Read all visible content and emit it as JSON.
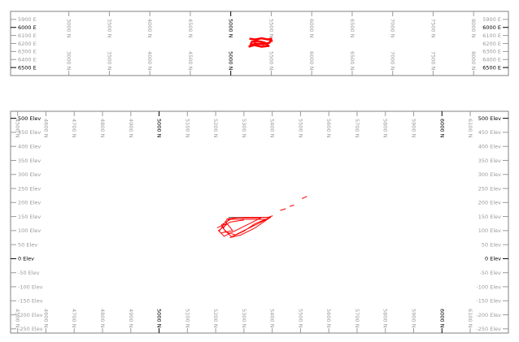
{
  "colors": {
    "frame": "#808080",
    "tick": "#9a9a9a",
    "major": "#000000",
    "trajectory": "#ff0000",
    "reference_line": "#808080"
  },
  "chart_data": [
    {
      "type": "line",
      "view": "plan",
      "x_ticks": [
        {
          "value": 3000,
          "label": "3000 N"
        },
        {
          "value": 3500,
          "label": "3500 N"
        },
        {
          "value": 4000,
          "label": "4000 N"
        },
        {
          "value": 4500,
          "label": "4500 N"
        },
        {
          "value": 5000,
          "label": "5000 N",
          "major": true
        },
        {
          "value": 5500,
          "label": "5500 N"
        },
        {
          "value": 6000,
          "label": "6000 N"
        },
        {
          "value": 6500,
          "label": "6500 N"
        },
        {
          "value": 7000,
          "label": "7000 N"
        },
        {
          "value": 7500,
          "label": "7500 N"
        },
        {
          "value": 8000,
          "label": "8000 N"
        }
      ],
      "y_ticks": [
        {
          "value": 5900,
          "label": "5900 E"
        },
        {
          "value": 6000,
          "label": "6000 E",
          "major": true
        },
        {
          "value": 6100,
          "label": "6100 E"
        },
        {
          "value": 6200,
          "label": "6200 E"
        },
        {
          "value": 6300,
          "label": "6300 E"
        },
        {
          "value": 6400,
          "label": "6400 E"
        },
        {
          "value": 6500,
          "label": "6500 E",
          "major": true
        }
      ],
      "xlim": [
        2280,
        8430
      ],
      "ylim": [
        5800,
        6600
      ],
      "y_inverted": true,
      "series": [
        {
          "points": [
            [
              5230,
              6140
            ],
            [
              5300,
              6150
            ],
            [
              5380,
              6135
            ],
            [
              5460,
              6150
            ],
            [
              5500,
              6140
            ],
            [
              5480,
              6190
            ],
            [
              5400,
              6210
            ],
            [
              5300,
              6200
            ],
            [
              5240,
              6230
            ],
            [
              5260,
              6180
            ],
            [
              5330,
              6170
            ],
            [
              5420,
              6190
            ],
            [
              5470,
              6230
            ],
            [
              5380,
              6240
            ],
            [
              5290,
              6220
            ],
            [
              5220,
              6240
            ]
          ]
        },
        {
          "points": [
            [
              5500,
              6150
            ],
            [
              5510,
              6180
            ]
          ]
        }
      ]
    },
    {
      "type": "line",
      "view": "section",
      "x_ticks": [
        {
          "value": 4500,
          "label": "4500 N"
        },
        {
          "value": 4600,
          "label": "4600 N"
        },
        {
          "value": 4700,
          "label": "4700 N"
        },
        {
          "value": 4800,
          "label": "4800 N"
        },
        {
          "value": 4900,
          "label": "4900 N"
        },
        {
          "value": 5000,
          "label": "5000 N",
          "major": true
        },
        {
          "value": 5100,
          "label": "5100 N"
        },
        {
          "value": 5200,
          "label": "5200 N"
        },
        {
          "value": 5300,
          "label": "5300 N"
        },
        {
          "value": 5400,
          "label": "5400 N"
        },
        {
          "value": 5500,
          "label": "5500 N"
        },
        {
          "value": 5600,
          "label": "5600 N"
        },
        {
          "value": 5700,
          "label": "5700 N"
        },
        {
          "value": 5800,
          "label": "5800 N"
        },
        {
          "value": 5900,
          "label": "5900 N"
        },
        {
          "value": 6000,
          "label": "6000 N",
          "major": true
        },
        {
          "value": 6100,
          "label": "6100 N"
        }
      ],
      "y_ticks": [
        {
          "value": 500,
          "label": "500 Elev",
          "major": true
        },
        {
          "value": 450,
          "label": "450 Elev"
        },
        {
          "value": 400,
          "label": "400 Elev"
        },
        {
          "value": 350,
          "label": "350 Elev"
        },
        {
          "value": 300,
          "label": "300 Elev"
        },
        {
          "value": 250,
          "label": "250 Elev"
        },
        {
          "value": 200,
          "label": "200 Elev"
        },
        {
          "value": 150,
          "label": "150 Elev"
        },
        {
          "value": 100,
          "label": "100 Elev"
        },
        {
          "value": 50,
          "label": "50 Elev"
        },
        {
          "value": 0,
          "label": "0 Elev",
          "major": true
        },
        {
          "value": -50,
          "label": "-50 Elev"
        },
        {
          "value": -100,
          "label": "-100 Elev"
        },
        {
          "value": -150,
          "label": "-150 Elev"
        },
        {
          "value": -200,
          "label": "-200 Elev"
        },
        {
          "value": -250,
          "label": "-250 Elev"
        }
      ],
      "xlim": [
        4475,
        6235
      ],
      "ylim": [
        -265,
        525
      ],
      "reference_line": [
        [
          5245,
          147
        ],
        [
          5395,
          147
        ]
      ],
      "series": [
        {
          "points": [
            [
              5213,
              98
            ],
            [
              5241,
              142
            ],
            [
              5300,
              147
            ],
            [
              5394,
              147
            ],
            [
              5340,
              125
            ],
            [
              5300,
              98
            ],
            [
              5256,
              78
            ],
            [
              5227,
              107
            ],
            [
              5245,
              140
            ],
            [
              5330,
              140
            ],
            [
              5380,
              140
            ],
            [
              5320,
              110
            ],
            [
              5270,
              85
            ],
            [
              5236,
              95
            ],
            [
              5220,
              120
            ],
            [
              5260,
              145
            ],
            [
              5360,
              145
            ],
            [
              5300,
              115
            ],
            [
              5250,
              90
            ],
            [
              5230,
              80
            ],
            [
              5210,
              100
            ],
            [
              5250,
              130
            ],
            [
              5300,
              138
            ]
          ]
        },
        {
          "points": [
            [
              5250,
              75
            ],
            [
              5290,
              85
            ],
            [
              5340,
              110
            ],
            [
              5390,
              145
            ]
          ]
        },
        {
          "points": [
            [
              5220,
              92
            ],
            [
              5260,
              100
            ],
            [
              5240,
              125
            ],
            [
              5205,
              110
            ]
          ]
        },
        {
          "points": [
            [
              5385,
              147
            ],
            [
              5402,
              153
            ]
          ]
        },
        {
          "points": [
            [
              5428,
              172
            ],
            [
              5448,
              178
            ]
          ]
        },
        {
          "points": [
            [
              5462,
              186
            ],
            [
              5477,
              191
            ]
          ]
        },
        {
          "points": [
            [
              5505,
              214
            ],
            [
              5523,
              222
            ]
          ]
        }
      ]
    }
  ]
}
